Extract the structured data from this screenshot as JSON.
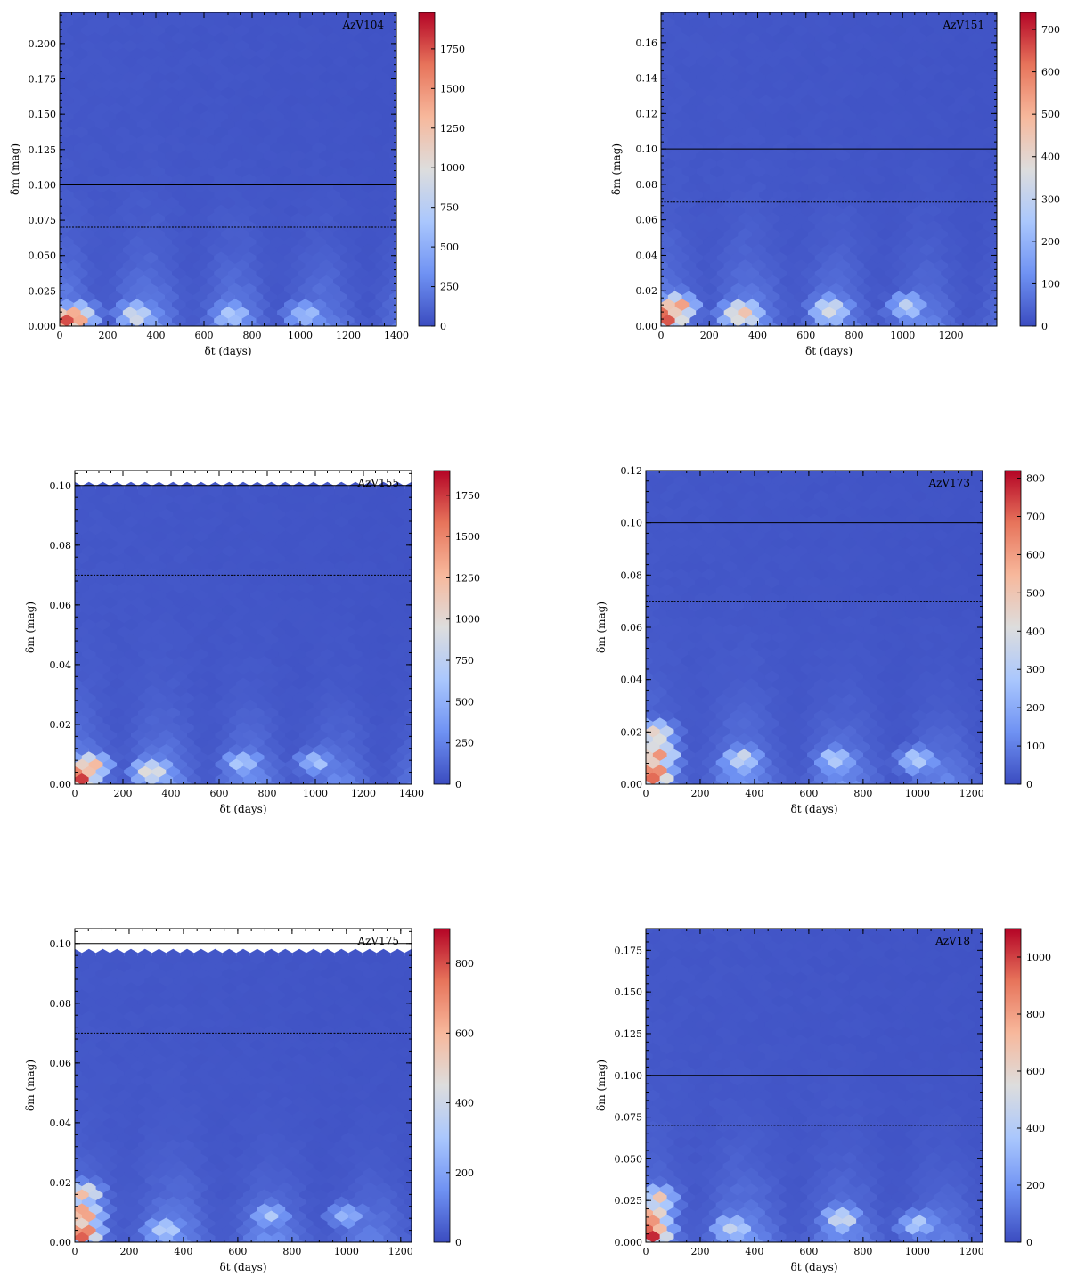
{
  "figure": {
    "colormap": [
      "#3b4cc0",
      "#6f92f3",
      "#aac7fd",
      "#dddddd",
      "#f7b89c",
      "#e7745b",
      "#b40426"
    ],
    "frame_color": "#000000",
    "solid_line_value": 0.1,
    "dotted_line_value": 0.07
  },
  "chart_data": [
    {
      "type": "heatmap",
      "title": "AzV104",
      "xlabel": "δt (days)",
      "ylabel": "δm (mag)",
      "xlim": [
        0,
        1400
      ],
      "ylim": [
        0,
        0.222
      ],
      "xticks": [
        0,
        200,
        400,
        600,
        800,
        1000,
        1200,
        1400
      ],
      "yticks": [
        0,
        0.025,
        0.05,
        0.075,
        0.1,
        0.125,
        0.15,
        0.175,
        0.2
      ],
      "ytick_labels": [
        "0.000",
        "0.025",
        "0.050",
        "0.075",
        "0.100",
        "0.125",
        "0.150",
        "0.175",
        "0.200"
      ],
      "colorbar": {
        "min": 0,
        "max": 1980,
        "ticks": [
          0,
          250,
          500,
          750,
          1000,
          1250,
          1500,
          1750
        ]
      },
      "data_xmax": 1400,
      "data_ymax": 0.222,
      "hot_clusters": [
        {
          "x": 20,
          "y": 0.006,
          "count": 1980
        },
        {
          "x": 70,
          "y": 0.008,
          "count": 1450
        },
        {
          "x": 320,
          "y": 0.009,
          "count": 1000
        },
        {
          "x": 720,
          "y": 0.009,
          "count": 820
        },
        {
          "x": 1020,
          "y": 0.01,
          "count": 680
        }
      ],
      "horizontal_lines": {
        "solid": 0.1,
        "dotted": 0.07
      }
    },
    {
      "type": "heatmap",
      "title": "AzV151",
      "xlabel": "δt (days)",
      "ylabel": "δm (mag)",
      "xlim": [
        0,
        1390
      ],
      "ylim": [
        0,
        0.177
      ],
      "xticks": [
        0,
        200,
        400,
        600,
        800,
        1000,
        1200
      ],
      "yticks": [
        0,
        0.02,
        0.04,
        0.06,
        0.08,
        0.1,
        0.12,
        0.14,
        0.16
      ],
      "ytick_labels": [
        "0.00",
        "0.02",
        "0.04",
        "0.06",
        "0.08",
        "0.10",
        "0.12",
        "0.14",
        "0.16"
      ],
      "colorbar": {
        "min": 0,
        "max": 740,
        "ticks": [
          0,
          100,
          200,
          300,
          400,
          500,
          600,
          700
        ]
      },
      "data_xmax": 1390,
      "data_ymax": 0.177,
      "hot_clusters": [
        {
          "x": 20,
          "y": 0.006,
          "count": 740
        },
        {
          "x": 60,
          "y": 0.012,
          "count": 560
        },
        {
          "x": 330,
          "y": 0.008,
          "count": 520
        },
        {
          "x": 700,
          "y": 0.01,
          "count": 420
        },
        {
          "x": 1020,
          "y": 0.012,
          "count": 300
        }
      ],
      "horizontal_lines": {
        "solid": 0.1,
        "dotted": 0.07
      }
    },
    {
      "type": "heatmap",
      "title": "AzV155",
      "xlabel": "δt (days)",
      "ylabel": "δm (mag)",
      "xlim": [
        0,
        1400
      ],
      "ylim": [
        0,
        0.105
      ],
      "xticks": [
        0,
        200,
        400,
        600,
        800,
        1000,
        1200,
        1400
      ],
      "yticks": [
        0,
        0.02,
        0.04,
        0.06,
        0.08,
        0.1
      ],
      "ytick_labels": [
        "0.00",
        "0.02",
        "0.04",
        "0.06",
        "0.08",
        "0.10"
      ],
      "colorbar": {
        "min": 0,
        "max": 1900,
        "ticks": [
          0,
          250,
          500,
          750,
          1000,
          1250,
          1500,
          1750
        ]
      },
      "data_xmax": 1400,
      "data_ymax": 0.0985,
      "hot_clusters": [
        {
          "x": 20,
          "y": 0.003,
          "count": 1900
        },
        {
          "x": 60,
          "y": 0.007,
          "count": 1400
        },
        {
          "x": 320,
          "y": 0.005,
          "count": 1100
        },
        {
          "x": 700,
          "y": 0.008,
          "count": 700
        },
        {
          "x": 1000,
          "y": 0.008,
          "count": 600
        }
      ],
      "horizontal_lines": {
        "solid": 0.1,
        "dotted": 0.07
      }
    },
    {
      "type": "heatmap",
      "title": "AzV173",
      "xlabel": "δt (days)",
      "ylabel": "δm (mag)",
      "xlim": [
        0,
        1240
      ],
      "ylim": [
        0,
        0.12
      ],
      "xticks": [
        0,
        200,
        400,
        600,
        800,
        1000,
        1200
      ],
      "yticks": [
        0,
        0.02,
        0.04,
        0.06,
        0.08,
        0.1,
        0.12
      ],
      "ytick_labels": [
        "0.00",
        "0.02",
        "0.04",
        "0.06",
        "0.08",
        "0.10",
        "0.12"
      ],
      "colorbar": {
        "min": 0,
        "max": 820,
        "ticks": [
          0,
          100,
          200,
          300,
          400,
          500,
          600,
          700,
          800
        ]
      },
      "data_xmax": 1240,
      "data_ymax": 0.12,
      "hot_clusters": [
        {
          "x": 20,
          "y": 0.004,
          "count": 820
        },
        {
          "x": 40,
          "y": 0.012,
          "count": 650
        },
        {
          "x": 30,
          "y": 0.02,
          "count": 520
        },
        {
          "x": 350,
          "y": 0.01,
          "count": 400
        },
        {
          "x": 700,
          "y": 0.01,
          "count": 330
        },
        {
          "x": 1000,
          "y": 0.01,
          "count": 300
        }
      ],
      "horizontal_lines": {
        "solid": 0.1,
        "dotted": 0.07
      }
    },
    {
      "type": "heatmap",
      "title": "AzV175",
      "xlabel": "δt (days)",
      "ylabel": "δm (mag)",
      "xlim": [
        0,
        1240
      ],
      "ylim": [
        0,
        0.105
      ],
      "xticks": [
        0,
        200,
        400,
        600,
        800,
        1000,
        1200
      ],
      "yticks": [
        0,
        0.02,
        0.04,
        0.06,
        0.08,
        0.1
      ],
      "ytick_labels": [
        "0.00",
        "0.02",
        "0.04",
        "0.06",
        "0.08",
        "0.10"
      ],
      "colorbar": {
        "min": 0,
        "max": 900,
        "ticks": [
          0,
          200,
          400,
          600,
          800
        ]
      },
      "data_xmax": 1240,
      "data_ymax": 0.0955,
      "hot_clusters": [
        {
          "x": 20,
          "y": 0.004,
          "count": 900
        },
        {
          "x": 30,
          "y": 0.01,
          "count": 750
        },
        {
          "x": 30,
          "y": 0.017,
          "count": 560
        },
        {
          "x": 330,
          "y": 0.005,
          "count": 420
        },
        {
          "x": 720,
          "y": 0.01,
          "count": 300
        },
        {
          "x": 1000,
          "y": 0.01,
          "count": 260
        }
      ],
      "horizontal_lines": {
        "solid": 0.1,
        "dotted": 0.07
      }
    },
    {
      "type": "heatmap",
      "title": "AzV18",
      "xlabel": "δt (days)",
      "ylabel": "δm (mag)",
      "xlim": [
        0,
        1240
      ],
      "ylim": [
        0,
        0.188
      ],
      "xticks": [
        0,
        200,
        400,
        600,
        800,
        1000,
        1200
      ],
      "yticks": [
        0,
        0.025,
        0.05,
        0.075,
        0.1,
        0.125,
        0.15,
        0.175
      ],
      "ytick_labels": [
        "0.000",
        "0.025",
        "0.050",
        "0.075",
        "0.100",
        "0.125",
        "0.150",
        "0.175"
      ],
      "colorbar": {
        "min": 0,
        "max": 1100,
        "ticks": [
          0,
          200,
          400,
          600,
          800,
          1000
        ]
      },
      "data_xmax": 1240,
      "data_ymax": 0.188,
      "hot_clusters": [
        {
          "x": 20,
          "y": 0.006,
          "count": 1100
        },
        {
          "x": 20,
          "y": 0.017,
          "count": 900
        },
        {
          "x": 40,
          "y": 0.027,
          "count": 620
        },
        {
          "x": 320,
          "y": 0.01,
          "count": 480
        },
        {
          "x": 720,
          "y": 0.015,
          "count": 500
        },
        {
          "x": 1000,
          "y": 0.012,
          "count": 380
        }
      ],
      "horizontal_lines": {
        "solid": 0.1,
        "dotted": 0.07
      }
    }
  ]
}
